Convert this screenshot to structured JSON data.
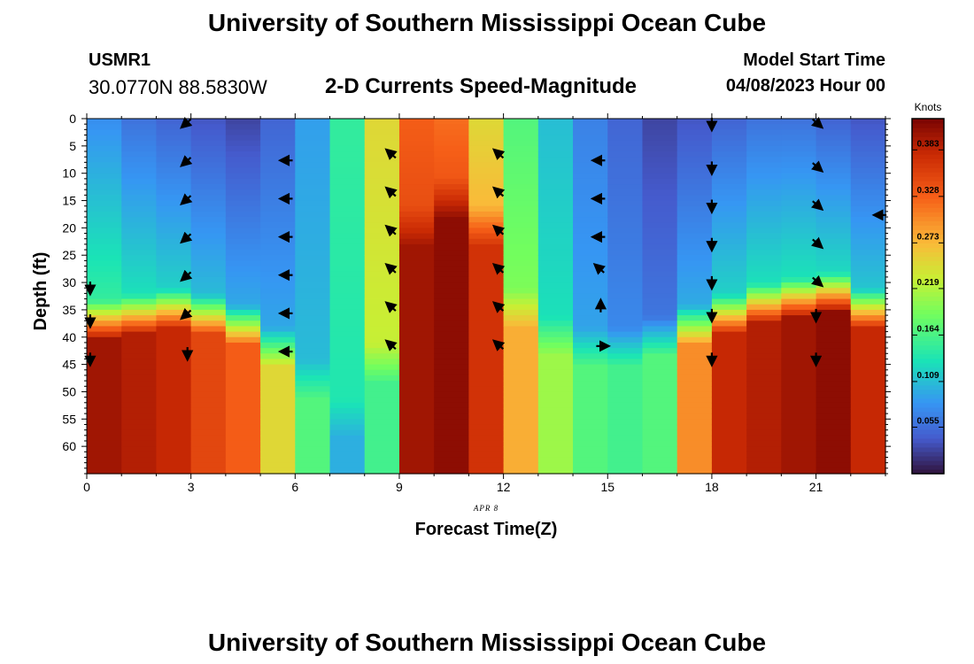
{
  "header": {
    "title": "University of Southern Mississippi Ocean Cube",
    "station": "USMR1",
    "location": "30.0770N  88.5830W",
    "plot_title": "2-D Currents Speed-Magnitude",
    "model_label": "Model Start Time",
    "model_time": "04/08/2023 Hour 00"
  },
  "footer": {
    "title": "University of Southern Mississippi Ocean Cube"
  },
  "chart_data": {
    "type": "heatmap",
    "title": "2-D Currents Speed-Magnitude",
    "xlabel": "Forecast Time(Z)",
    "ylabel": "Depth (ft)",
    "date_label": "APR 8",
    "x_ticks": [
      0,
      3,
      6,
      9,
      12,
      15,
      18,
      21
    ],
    "y_ticks": [
      0,
      5,
      10,
      15,
      20,
      25,
      30,
      35,
      40,
      45,
      50,
      55,
      60
    ],
    "xlim": [
      0,
      23
    ],
    "ylim": [
      65,
      0
    ],
    "colorbar": {
      "label": "Knots",
      "ticks": [
        "0.055",
        "0.109",
        "0.164",
        "0.219",
        "0.273",
        "0.328",
        "0.383"
      ],
      "range": [
        0.0,
        0.42
      ]
    },
    "hours": [
      0,
      1,
      2,
      3,
      4,
      5,
      6,
      7,
      8,
      9,
      10,
      11,
      12,
      13,
      14,
      15,
      16,
      17,
      18,
      19,
      20,
      21,
      22,
      23
    ],
    "surface_speed": [
      0.08,
      0.06,
      0.05,
      0.04,
      0.03,
      0.05,
      0.09,
      0.15,
      0.25,
      0.33,
      0.32,
      0.25,
      0.17,
      0.11,
      0.07,
      0.05,
      0.03,
      0.04,
      0.05,
      0.06,
      0.06,
      0.05,
      0.04,
      0.03
    ],
    "bottom_speed": [
      0.4,
      0.39,
      0.38,
      0.35,
      0.33,
      0.25,
      0.17,
      0.1,
      0.16,
      0.4,
      0.41,
      0.37,
      0.28,
      0.21,
      0.17,
      0.16,
      0.17,
      0.3,
      0.38,
      0.39,
      0.4,
      0.41,
      0.38,
      0.33
    ],
    "bottom_layer_top_depth": [
      37,
      36,
      35,
      36,
      38,
      42,
      48,
      55,
      45,
      20,
      15,
      20,
      35,
      40,
      42,
      42,
      40,
      38,
      36,
      34,
      33,
      32,
      35,
      40
    ],
    "arrow_columns": [
      {
        "hour": 0.1,
        "arrows": [
          {
            "depth": 30,
            "dir": "down"
          },
          {
            "depth": 36,
            "dir": "down"
          },
          {
            "depth": 43,
            "dir": "down"
          }
        ]
      },
      {
        "hour": 2.9,
        "arrows": [
          {
            "depth": 0,
            "dir": "down-left"
          },
          {
            "depth": 7,
            "dir": "down-left"
          },
          {
            "depth": 14,
            "dir": "down-left"
          },
          {
            "depth": 21,
            "dir": "down-left"
          },
          {
            "depth": 28,
            "dir": "down-left"
          },
          {
            "depth": 35,
            "dir": "down-left"
          },
          {
            "depth": 42,
            "dir": "down"
          }
        ]
      },
      {
        "hour": 5.8,
        "arrows": [
          {
            "depth": 7,
            "dir": "left"
          },
          {
            "depth": 14,
            "dir": "left"
          },
          {
            "depth": 21,
            "dir": "left"
          },
          {
            "depth": 28,
            "dir": "left"
          },
          {
            "depth": 35,
            "dir": "left"
          },
          {
            "depth": 42,
            "dir": "left"
          }
        ]
      },
      {
        "hour": 8.8,
        "arrows": [
          {
            "depth": 6,
            "dir": "up-left"
          },
          {
            "depth": 13,
            "dir": "up-left"
          },
          {
            "depth": 20,
            "dir": "up-left"
          },
          {
            "depth": 27,
            "dir": "up-left"
          },
          {
            "depth": 34,
            "dir": "up-left"
          },
          {
            "depth": 41,
            "dir": "up-left"
          }
        ]
      },
      {
        "hour": 11.9,
        "arrows": [
          {
            "depth": 6,
            "dir": "up-left"
          },
          {
            "depth": 13,
            "dir": "up-left"
          },
          {
            "depth": 20,
            "dir": "up-left"
          },
          {
            "depth": 27,
            "dir": "up-left"
          },
          {
            "depth": 34,
            "dir": "up-left"
          },
          {
            "depth": 41,
            "dir": "up-left"
          }
        ]
      },
      {
        "hour": 14.8,
        "arrows": [
          {
            "depth": 7,
            "dir": "left"
          },
          {
            "depth": 14,
            "dir": "left"
          },
          {
            "depth": 21,
            "dir": "left"
          },
          {
            "depth": 27,
            "dir": "up-left"
          },
          {
            "depth": 34,
            "dir": "up"
          },
          {
            "depth": 41,
            "dir": "right"
          }
        ]
      },
      {
        "hour": 18.0,
        "arrows": [
          {
            "depth": 0,
            "dir": "down"
          },
          {
            "depth": 8,
            "dir": "down"
          },
          {
            "depth": 15,
            "dir": "down"
          },
          {
            "depth": 22,
            "dir": "down"
          },
          {
            "depth": 29,
            "dir": "down"
          },
          {
            "depth": 35,
            "dir": "down"
          },
          {
            "depth": 43,
            "dir": "down"
          }
        ]
      },
      {
        "hour": 21.0,
        "arrows": [
          {
            "depth": 0,
            "dir": "down-right"
          },
          {
            "depth": 8,
            "dir": "down-right"
          },
          {
            "depth": 15,
            "dir": "down-right"
          },
          {
            "depth": 22,
            "dir": "down-right"
          },
          {
            "depth": 29,
            "dir": "down-right"
          },
          {
            "depth": 35,
            "dir": "down"
          },
          {
            "depth": 43,
            "dir": "down"
          }
        ]
      },
      {
        "hour": 22.9,
        "arrows": [
          {
            "depth": 17,
            "dir": "left"
          }
        ]
      }
    ]
  }
}
